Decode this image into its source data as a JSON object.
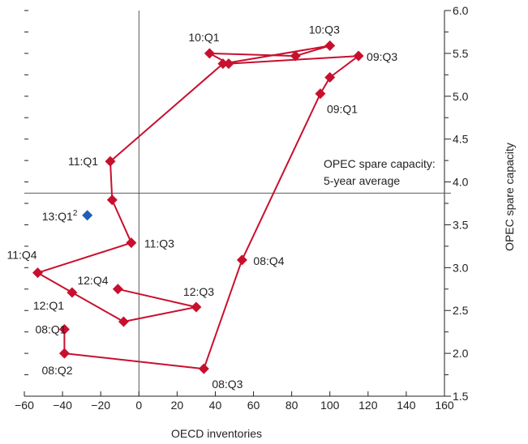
{
  "chart_data": {
    "type": "scatter",
    "title": "",
    "xlabel": "OECD inventories",
    "ylabel": "OPEC spare capacity",
    "xlim": [
      -60,
      160
    ],
    "ylim": [
      1.5,
      6.0
    ],
    "xticks": [
      -60,
      -40,
      -20,
      0,
      20,
      40,
      60,
      80,
      100,
      120,
      140,
      160
    ],
    "xtick_labels": [
      "−60",
      "−40",
      "−20",
      "0",
      "20",
      "40",
      "60",
      "80",
      "100",
      "120",
      "140",
      "160"
    ],
    "yticks": [
      1.5,
      2.0,
      2.5,
      3.0,
      3.5,
      4.0,
      4.5,
      5.0,
      5.5,
      6.0
    ],
    "ytick_labels": [
      "1.5",
      "2.0",
      "2.5",
      "3.0",
      "3.5",
      "4.0",
      "4.5",
      "5.0",
      "5.5",
      "6.0"
    ],
    "reference_lines": {
      "x": 0,
      "y": 3.87
    },
    "annotation": [
      "OPEC spare capacity:",
      "5-year average"
    ],
    "series": [
      {
        "color": "#c8102e",
        "marker": "diamond",
        "points": [
          {
            "x": -39,
            "y": 2.28,
            "label": "08:Q1"
          },
          {
            "x": -39,
            "y": 2.0,
            "label": "08:Q2"
          },
          {
            "x": 34,
            "y": 1.82,
            "label": "08:Q3"
          },
          {
            "x": 54,
            "y": 3.09,
            "label": "08:Q4"
          },
          {
            "x": 95,
            "y": 5.03,
            "label": "09:Q1"
          },
          {
            "x": 100,
            "y": 5.22,
            "label": ""
          },
          {
            "x": 115,
            "y": 5.47,
            "label": "09:Q3"
          },
          {
            "x": 47,
            "y": 5.38,
            "label": ""
          },
          {
            "x": 37,
            "y": 5.5,
            "label": "10:Q1"
          },
          {
            "x": 82,
            "y": 5.47,
            "label": ""
          },
          {
            "x": 100,
            "y": 5.59,
            "label": "10:Q3"
          },
          {
            "x": 44,
            "y": 5.38,
            "label": ""
          },
          {
            "x": -15,
            "y": 4.24,
            "label": "11:Q1"
          },
          {
            "x": -14,
            "y": 3.79,
            "label": ""
          },
          {
            "x": -4,
            "y": 3.29,
            "label": "11:Q3"
          },
          {
            "x": -53,
            "y": 2.94,
            "label": "11:Q4"
          },
          {
            "x": -35,
            "y": 2.71,
            "label": "12:Q1"
          },
          {
            "x": -8,
            "y": 2.37,
            "label": ""
          },
          {
            "x": 30,
            "y": 2.54,
            "label": "12:Q3"
          },
          {
            "x": -11,
            "y": 2.75,
            "label": "12:Q4"
          }
        ]
      },
      {
        "color": "#1f5fb4",
        "marker": "diamond",
        "points": [
          {
            "x": -27,
            "y": 3.61,
            "label": "13:Q1",
            "superscript": "2"
          }
        ]
      }
    ],
    "grid": false,
    "legend": "none"
  }
}
